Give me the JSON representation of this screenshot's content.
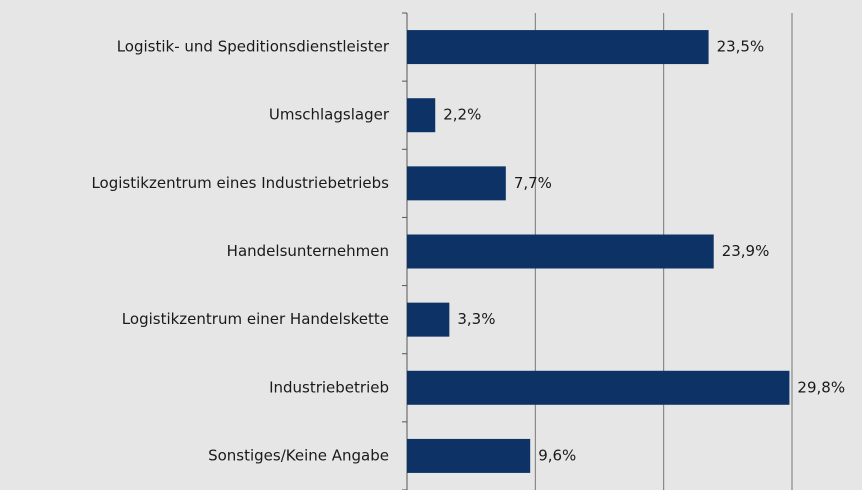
{
  "chart_data": {
    "type": "hbar",
    "categories": [
      "Logistik- und Speditionsdienstleister",
      "Umschlagslager",
      "Logistikzentrum eines Industriebetriebs",
      "Handelsunternehmen",
      "Logistikzentrum einer Handelskette",
      "Industriebetrieb",
      "Sonstiges/Keine Angabe"
    ],
    "values": [
      23.5,
      2.2,
      7.7,
      23.9,
      3.3,
      29.8,
      9.6
    ],
    "value_labels": [
      "23,5%",
      "2,2%",
      "7,7%",
      "23,9%",
      "3,3%",
      "29,8%",
      "9,6%"
    ],
    "color": "#0d3366",
    "xlim": [
      0,
      30
    ],
    "xticks": [
      0,
      10,
      20,
      30
    ],
    "grid": true
  }
}
